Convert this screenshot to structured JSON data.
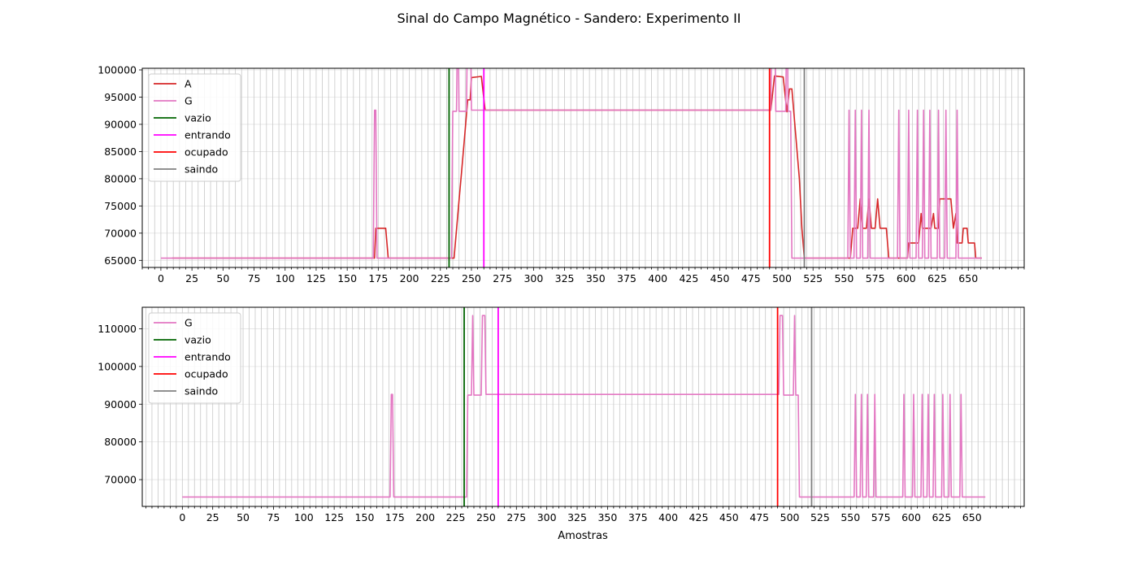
{
  "chart_data": {
    "title": "Sinal do Campo Magnético - Sandero: Experimento II",
    "xlabel": "Amostras",
    "subplots": [
      {
        "type": "line",
        "xlim": [
          -15,
          695
        ],
        "ylim": [
          63700,
          100300
        ],
        "xticks": [
          0,
          25,
          50,
          75,
          100,
          125,
          150,
          175,
          200,
          225,
          250,
          275,
          300,
          325,
          350,
          375,
          400,
          425,
          450,
          475,
          500,
          525,
          550,
          575,
          600,
          625,
          650
        ],
        "yticks": [
          65000,
          70000,
          75000,
          80000,
          85000,
          90000,
          95000,
          100000
        ],
        "grid": true,
        "legend_position": "upper left",
        "series": [
          {
            "name": "A",
            "color": "#d62728",
            "points": [
              [
                9,
                65400
              ],
              [
                172,
                65400
              ],
              [
                173,
                70900
              ],
              [
                181,
                70900
              ],
              [
                183,
                65400
              ],
              [
                236,
                65400
              ],
              [
                240,
                76000
              ],
              [
                242,
                81000
              ],
              [
                245,
                89000
              ],
              [
                247,
                94500
              ],
              [
                249,
                94500
              ],
              [
                250,
                98600
              ],
              [
                258,
                98800
              ],
              [
                261,
                92600
              ],
              [
                491,
                92600
              ],
              [
                494,
                98900
              ],
              [
                501,
                98700
              ],
              [
                504,
                92300
              ],
              [
                506,
                96500
              ],
              [
                508,
                96500
              ],
              [
                514,
                80000
              ],
              [
                516,
                70900
              ],
              [
                518,
                65400
              ],
              [
                555,
                65400
              ],
              [
                557,
                70900
              ],
              [
                561,
                70900
              ],
              [
                563,
                76300
              ],
              [
                565,
                70900
              ],
              [
                568,
                70900
              ],
              [
                570,
                76300
              ],
              [
                572,
                70900
              ],
              [
                575,
                70900
              ],
              [
                577,
                76300
              ],
              [
                579,
                70900
              ],
              [
                584,
                70900
              ],
              [
                586,
                65400
              ],
              [
                601,
                65400
              ],
              [
                602,
                68200
              ],
              [
                610,
                68200
              ],
              [
                612,
                73600
              ],
              [
                613,
                70900
              ],
              [
                620,
                70900
              ],
              [
                622,
                73600
              ],
              [
                623,
                70900
              ],
              [
                626,
                70900
              ],
              [
                627,
                76300
              ],
              [
                636,
                76300
              ],
              [
                638,
                70900
              ],
              [
                640,
                73600
              ],
              [
                641,
                68200
              ],
              [
                645,
                68200
              ],
              [
                646,
                70900
              ],
              [
                649,
                70900
              ],
              [
                650,
                68200
              ],
              [
                655,
                68200
              ],
              [
                656,
                65400
              ],
              [
                661,
                65400
              ]
            ]
          },
          {
            "name": "G",
            "color": "#e377c2",
            "points": [
              [
                0,
                65400
              ],
              [
                171,
                65400
              ],
              [
                172,
                92600
              ],
              [
                173,
                92600
              ],
              [
                174,
                65400
              ],
              [
                234,
                65400
              ],
              [
                235,
                92400
              ],
              [
                238,
                92400
              ],
              [
                239,
                113500
              ],
              [
                240,
                92400
              ],
              [
                246,
                92400
              ],
              [
                247,
                113500
              ],
              [
                249,
                113500
              ],
              [
                250,
                92600
              ],
              [
                489,
                92600
              ],
              [
                491,
                92600
              ],
              [
                492,
                113500
              ],
              [
                494,
                113500
              ],
              [
                495,
                92400
              ],
              [
                503,
                92400
              ],
              [
                504,
                113500
              ],
              [
                505,
                92400
              ],
              [
                507,
                92400
              ],
              [
                508,
                65400
              ],
              [
                553,
                65400
              ],
              [
                554,
                92600
              ],
              [
                555,
                65400
              ],
              [
                558,
                65400
              ],
              [
                559,
                92600
              ],
              [
                560,
                65400
              ],
              [
                563,
                65400
              ],
              [
                564,
                92600
              ],
              [
                565,
                65400
              ],
              [
                569,
                65400
              ],
              [
                570,
                92600
              ],
              [
                571,
                65400
              ],
              [
                593,
                65400
              ],
              [
                594,
                92600
              ],
              [
                595,
                65400
              ],
              [
                601,
                65400
              ],
              [
                602,
                92600
              ],
              [
                603,
                65400
              ],
              [
                608,
                65400
              ],
              [
                609,
                92600
              ],
              [
                610,
                65400
              ],
              [
                613,
                65400
              ],
              [
                614,
                92600
              ],
              [
                615,
                65400
              ],
              [
                618,
                65400
              ],
              [
                619,
                92600
              ],
              [
                620,
                65400
              ],
              [
                625,
                65400
              ],
              [
                626,
                92600
              ],
              [
                627,
                65400
              ],
              [
                631,
                65400
              ],
              [
                632,
                92600
              ],
              [
                633,
                65400
              ],
              [
                640,
                65400
              ],
              [
                641,
                92600
              ],
              [
                642,
                65400
              ],
              [
                661,
                65400
              ]
            ]
          }
        ],
        "markers": [
          {
            "name": "vazio",
            "color": "#006400",
            "x": 232
          },
          {
            "name": "entrando",
            "color": "#ff00ff",
            "x": 260
          },
          {
            "name": "ocupado",
            "color": "#ff0000",
            "x": 490
          },
          {
            "name": "saindo",
            "color": "#808080",
            "x": 518
          }
        ]
      },
      {
        "type": "line",
        "xlim": [
          -33,
          693
        ],
        "ylim": [
          62900,
          115700
        ],
        "xticks": [
          0,
          25,
          50,
          75,
          100,
          125,
          150,
          175,
          200,
          225,
          250,
          275,
          300,
          325,
          350,
          375,
          400,
          425,
          450,
          475,
          500,
          525,
          550,
          575,
          600,
          625,
          650
        ],
        "yticks": [
          70000,
          80000,
          90000,
          100000,
          110000
        ],
        "grid": true,
        "legend_position": "upper left",
        "series": [
          {
            "name": "G",
            "color": "#e377c2",
            "points": [
              [
                0,
                65400
              ],
              [
                171,
                65400
              ],
              [
                172,
                92600
              ],
              [
                173,
                92600
              ],
              [
                174,
                65400
              ],
              [
                234,
                65400
              ],
              [
                235,
                92400
              ],
              [
                238,
                92400
              ],
              [
                239,
                113500
              ],
              [
                240,
                92400
              ],
              [
                246,
                92400
              ],
              [
                247,
                113500
              ],
              [
                249,
                113500
              ],
              [
                250,
                92600
              ],
              [
                489,
                92600
              ],
              [
                491,
                92600
              ],
              [
                492,
                113500
              ],
              [
                494,
                113500
              ],
              [
                495,
                92400
              ],
              [
                503,
                92400
              ],
              [
                504,
                113500
              ],
              [
                505,
                92400
              ],
              [
                507,
                92400
              ],
              [
                508,
                65400
              ],
              [
                553,
                65400
              ],
              [
                554,
                92600
              ],
              [
                555,
                65400
              ],
              [
                558,
                65400
              ],
              [
                559,
                92600
              ],
              [
                560,
                65400
              ],
              [
                563,
                65400
              ],
              [
                564,
                92600
              ],
              [
                565,
                65400
              ],
              [
                569,
                65400
              ],
              [
                570,
                92600
              ],
              [
                571,
                65400
              ],
              [
                593,
                65400
              ],
              [
                594,
                92600
              ],
              [
                595,
                65400
              ],
              [
                601,
                65400
              ],
              [
                602,
                92600
              ],
              [
                603,
                65400
              ],
              [
                608,
                65400
              ],
              [
                609,
                92600
              ],
              [
                610,
                65400
              ],
              [
                613,
                65400
              ],
              [
                614,
                92600
              ],
              [
                615,
                65400
              ],
              [
                618,
                65400
              ],
              [
                619,
                92600
              ],
              [
                620,
                65400
              ],
              [
                625,
                65400
              ],
              [
                626,
                92600
              ],
              [
                627,
                65400
              ],
              [
                631,
                65400
              ],
              [
                632,
                92600
              ],
              [
                633,
                65400
              ],
              [
                640,
                65400
              ],
              [
                641,
                92600
              ],
              [
                642,
                65400
              ],
              [
                661,
                65400
              ]
            ]
          }
        ],
        "markers": [
          {
            "name": "vazio",
            "color": "#006400",
            "x": 232
          },
          {
            "name": "entrando",
            "color": "#ff00ff",
            "x": 260
          },
          {
            "name": "ocupado",
            "color": "#ff0000",
            "x": 490
          },
          {
            "name": "saindo",
            "color": "#808080",
            "x": 518
          }
        ]
      }
    ]
  }
}
